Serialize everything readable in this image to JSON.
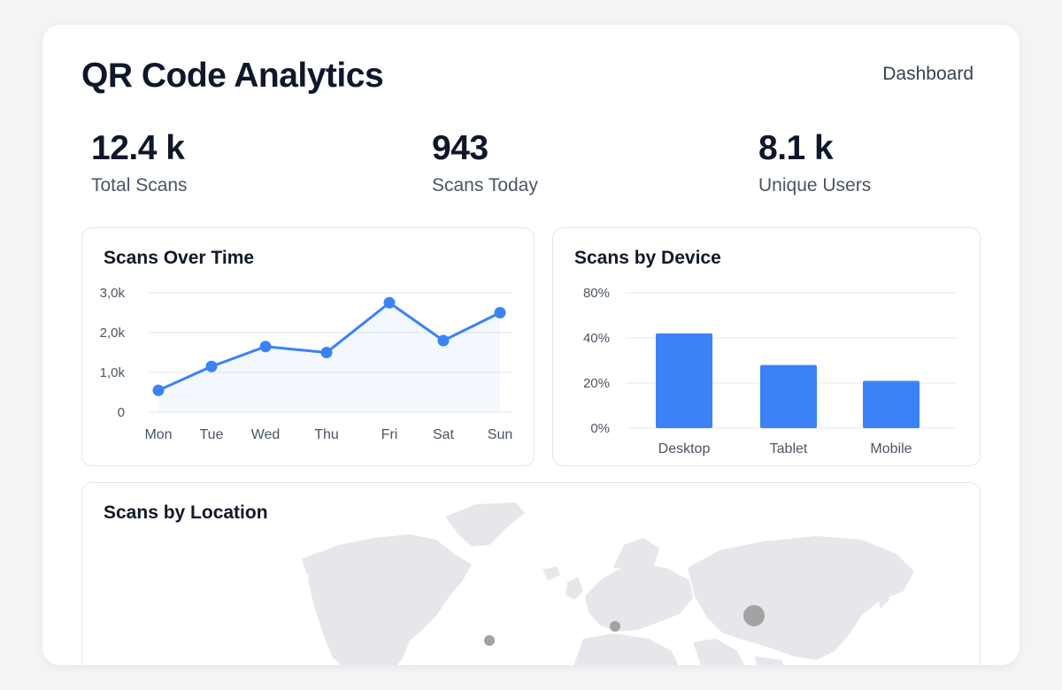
{
  "header": {
    "title": "QR Code Analytics",
    "nav_label": "Dashboard"
  },
  "stats": [
    {
      "value": "12.4 k",
      "label": "Total Scans"
    },
    {
      "value": "943",
      "label": "Scans Today"
    },
    {
      "value": "8.1 k",
      "label": "Unique Users"
    }
  ],
  "panels": {
    "time_title": "Scans Over Time",
    "device_title": "Scans by Device",
    "location_title": "Scans by Location"
  },
  "colors": {
    "accent": "#3b82f6",
    "marker": "#a3a3a3",
    "land": "#e5e7eb"
  },
  "chart_data": [
    {
      "type": "line",
      "title": "Scans Over Time",
      "categories": [
        "Mon",
        "Tue",
        "Wed",
        "Thu",
        "Fri",
        "Sat",
        "Sun"
      ],
      "values": [
        550,
        1150,
        1650,
        1500,
        2750,
        1800,
        2500
      ],
      "y_ticks": [
        0,
        1000,
        2000,
        3000
      ],
      "y_tick_labels": [
        "0",
        "1,0k",
        "2,0k",
        "3,0k"
      ],
      "ylim": [
        0,
        3000
      ],
      "grid": true
    },
    {
      "type": "bar",
      "title": "Scans by Device",
      "categories": [
        "Desktop",
        "Tablet",
        "Mobile"
      ],
      "values": [
        42,
        28,
        21
      ],
      "y_ticks": [
        0,
        20,
        40,
        80
      ],
      "y_tick_labels": [
        "0%",
        "20%",
        "40%",
        "80%"
      ],
      "grid": true
    }
  ],
  "map": {
    "icon": "world-map",
    "markers": [
      {
        "name": "north-america",
        "size": "small"
      },
      {
        "name": "europe",
        "size": "small"
      },
      {
        "name": "asia",
        "size": "large"
      }
    ]
  }
}
